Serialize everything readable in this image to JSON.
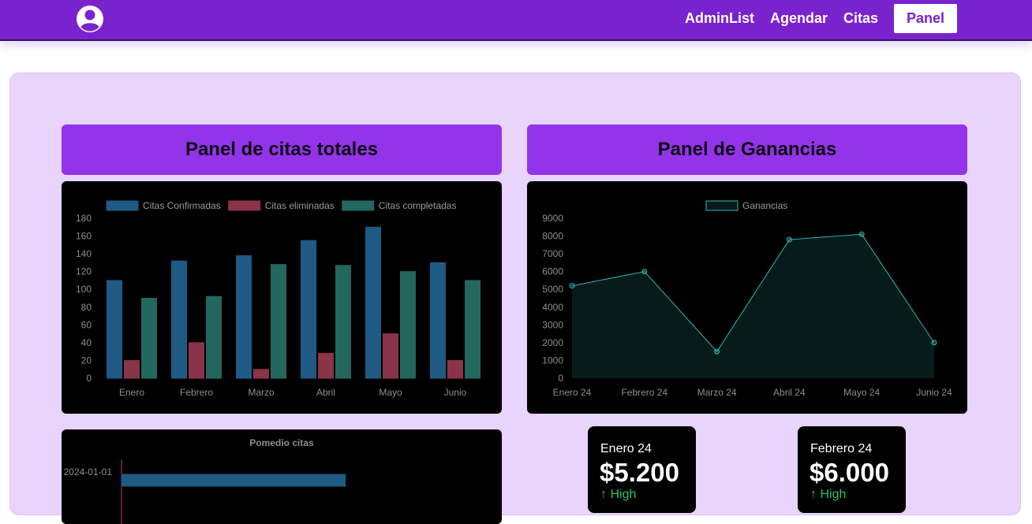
{
  "nav": {
    "links": [
      "AdminList",
      "Agendar",
      "Citas"
    ],
    "active": "Panel"
  },
  "panels": {
    "citas_title": "Panel de citas totales",
    "ganancias_title": "Panel de Ganancias"
  },
  "colors": {
    "brand": "#7b22cf",
    "header": "#9333ea",
    "background": "#e8d4fd",
    "blue": "#1f5a85",
    "red": "#8b3348",
    "teal": "#24675f",
    "line": "#33b3b3",
    "up": "#22c55e"
  },
  "chart_data": [
    {
      "type": "bar",
      "categories": [
        "Enero",
        "Febrero",
        "Marzo",
        "Abril",
        "Mayo",
        "Junio"
      ],
      "series": [
        {
          "name": "Citas Confirmadas",
          "values": [
            110,
            132,
            138,
            155,
            170,
            130
          ]
        },
        {
          "name": "Citas eliminadas",
          "values": [
            20,
            40,
            10,
            28,
            50,
            20
          ]
        },
        {
          "name": "Citas completadas",
          "values": [
            90,
            92,
            128,
            127,
            120,
            110
          ]
        }
      ],
      "yticks": [
        0,
        20,
        40,
        60,
        80,
        100,
        120,
        140,
        160,
        180
      ],
      "ylim": [
        0,
        180
      ],
      "legend": "top",
      "grid": false
    },
    {
      "type": "area",
      "x": [
        "Enero 24",
        "Febrero 24",
        "Marzo 24",
        "Abril 24",
        "Mayo 24",
        "Junio 24"
      ],
      "series": [
        {
          "name": "Ganancias",
          "values": [
            5200,
            6000,
            1500,
            7800,
            8100,
            2000
          ]
        }
      ],
      "yticks": [
        0,
        1000,
        2000,
        3000,
        4000,
        5000,
        6000,
        7000,
        8000,
        9000
      ],
      "ylim": [
        0,
        9000
      ],
      "legend": "top",
      "grid": false
    },
    {
      "type": "bar",
      "orientation": "horizontal",
      "title": "Pomedio citas",
      "categories": [
        "2024-01-01"
      ],
      "values": [
        110
      ],
      "xlim": [
        0,
        180
      ]
    }
  ],
  "cards": [
    {
      "period": "Enero 24",
      "amount": "$5.200",
      "trend": "High"
    },
    {
      "period": "Febrero 24",
      "amount": "$6.000",
      "trend": "High"
    }
  ]
}
